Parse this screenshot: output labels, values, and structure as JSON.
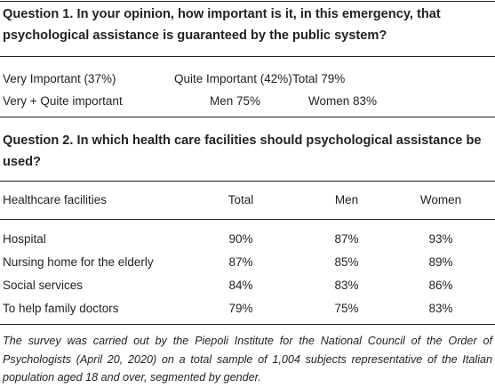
{
  "question1": {
    "title": "Question 1. In your opinion, how important is it, in this emergency, that psychological assistance is guaranteed by the public system?",
    "rows": [
      [
        "Very Important (37%)",
        "Quite Important (42%)",
        "Total 79%"
      ],
      [
        "Very + Quite important",
        "Men 75%",
        "Women 83%"
      ]
    ]
  },
  "question2": {
    "title": "Question 2. In which health care facilities should psychological assistance be used?",
    "table": {
      "header": [
        "Healthcare facilities",
        "Total",
        "Men",
        "Women"
      ],
      "rows": [
        [
          "Hospital",
          "90%",
          "87%",
          "93%"
        ],
        [
          "Nursing home for the elderly",
          "87%",
          "85%",
          "89%"
        ],
        [
          "Social services",
          "84%",
          "83%",
          "86%"
        ],
        [
          "To help family doctors",
          "79%",
          "75%",
          "83%"
        ]
      ]
    }
  },
  "footnote": "The survey was carried out by the Piepoli Institute for the National Council of the Order of Psychologists (April 20, 2020) on a total sample of 1,004 subjects representative of the Italian population aged 18 and over, segmented by gender."
}
